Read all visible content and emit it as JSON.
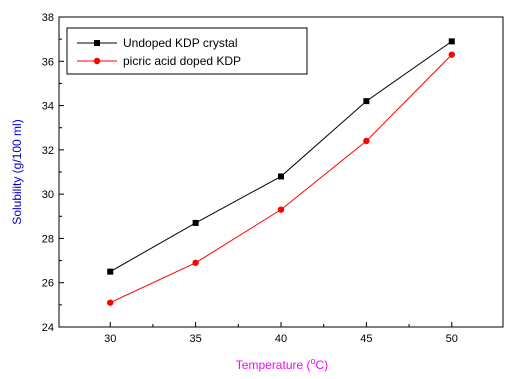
{
  "chart_data": {
    "type": "line",
    "title": "",
    "xlabel": "Temperature (",
    "xlabel_sup": "o",
    "xlabel_suffix": "C)",
    "ylabel": "Solubility (g/100 ml)",
    "xlim": [
      27,
      53
    ],
    "ylim": [
      24,
      38
    ],
    "x_ticks": [
      30,
      35,
      40,
      45,
      50
    ],
    "y_ticks": [
      24,
      26,
      28,
      30,
      32,
      34,
      36,
      38
    ],
    "x": [
      30,
      35,
      40,
      45,
      50
    ],
    "series": [
      {
        "name": "Undoped KDP crystal",
        "values": [
          26.5,
          28.7,
          30.8,
          34.2,
          36.9
        ],
        "color": "#000000",
        "marker": "square"
      },
      {
        "name": "picric acid doped KDP",
        "values": [
          25.1,
          26.9,
          29.3,
          32.4,
          36.3
        ],
        "color": "#ff0000",
        "marker": "circle"
      }
    ],
    "legend_position": "top-left",
    "grid": false,
    "xlabel_color": "#ff00ff",
    "ylabel_color": "#0000cc"
  }
}
